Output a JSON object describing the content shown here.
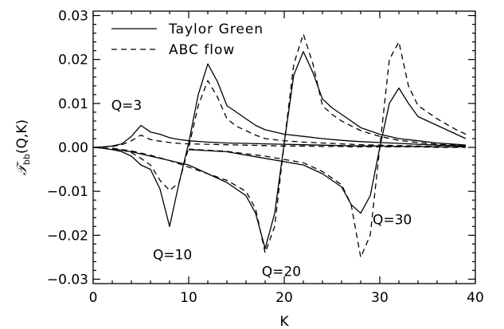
{
  "chart_data": {
    "type": "line",
    "xlabel": "K",
    "ylabel": "𝒯bb(Q,K)",
    "ylabel_main": "𝒯",
    "ylabel_sub": "bb",
    "ylabel_args": "(Q,K)",
    "xlim": [
      0,
      40
    ],
    "ylim": [
      -0.031,
      0.031
    ],
    "x_ticks": [
      0,
      10,
      20,
      30,
      40
    ],
    "x_tick_labels": [
      "0",
      "10",
      "20",
      "30",
      "40"
    ],
    "y_ticks": [
      -0.03,
      -0.02,
      -0.01,
      0.0,
      0.01,
      0.02,
      0.03
    ],
    "y_tick_labels": [
      "−0.03",
      "−0.02",
      "−0.01",
      "0.00",
      "0.01",
      "0.02",
      "0.03"
    ],
    "grid": false,
    "legend_position": "top-left",
    "legend": [
      {
        "label": "Taylor Green",
        "dash": "solid"
      },
      {
        "label": "ABC flow",
        "dash": "dashed"
      }
    ],
    "annotations": [
      {
        "text": "Q=3",
        "x": 3.5,
        "y": 0.0085
      },
      {
        "text": "Q=10",
        "x": 8.3,
        "y": -0.0255
      },
      {
        "text": "Q=20",
        "x": 19.7,
        "y": -0.0293
      },
      {
        "text": "Q=30",
        "x": 31.3,
        "y": -0.0175
      }
    ],
    "series": [
      {
        "name": "Taylor Green",
        "group": "Q=3",
        "dash": "solid",
        "x": [
          0,
          1,
          2,
          3,
          4,
          5,
          6,
          7,
          8,
          9,
          10,
          12,
          14,
          16,
          18,
          20,
          22,
          24,
          26,
          28,
          30,
          32,
          34,
          36,
          38,
          39
        ],
        "y": [
          0,
          0.0001,
          0.0003,
          0.0008,
          0.0025,
          0.005,
          0.0035,
          0.003,
          0.0022,
          0.0018,
          0.0015,
          0.0012,
          0.001,
          0.0009,
          0.0008,
          0.0007,
          0.0006,
          0.0005,
          0.0004,
          0.0003,
          0.0003,
          0.0002,
          0.0002,
          0.0001,
          0.0001,
          0.0001
        ]
      },
      {
        "name": "ABC flow",
        "group": "Q=3",
        "dash": "dashed",
        "x": [
          0,
          1,
          2,
          3,
          4,
          5,
          6,
          7,
          8,
          9,
          10,
          12,
          14,
          16,
          18,
          20,
          22,
          24,
          26,
          28,
          30,
          32,
          34,
          36,
          38,
          39
        ],
        "y": [
          0,
          0.0001,
          0.0002,
          0.0006,
          0.0015,
          0.0028,
          0.0018,
          0.0014,
          0.0011,
          0.0009,
          0.0008,
          0.0007,
          0.0006,
          0.0005,
          0.0004,
          0.0003,
          0.0003,
          0.0002,
          0.0002,
          0.0001,
          0.0001,
          0.0001,
          0.0001,
          0,
          0,
          0
        ]
      },
      {
        "name": "Taylor Green",
        "group": "Q=10",
        "dash": "solid",
        "x": [
          0,
          1,
          2,
          3,
          4,
          5,
          6,
          7,
          8,
          9,
          10,
          11,
          12,
          13,
          14,
          15,
          16,
          17,
          18,
          20,
          22,
          24,
          26,
          28,
          30,
          32,
          34,
          36,
          38,
          39
        ],
        "y": [
          0,
          -0.0002,
          -0.0005,
          -0.001,
          -0.002,
          -0.004,
          -0.005,
          -0.0095,
          -0.018,
          -0.008,
          0.001,
          0.012,
          0.019,
          0.015,
          0.0095,
          0.008,
          0.0065,
          0.005,
          0.004,
          0.003,
          0.0025,
          0.002,
          0.0016,
          0.0013,
          0.0011,
          0.0009,
          0.0007,
          0.0005,
          0.0004,
          0.0003
        ]
      },
      {
        "name": "ABC flow",
        "group": "Q=10",
        "dash": "dashed",
        "x": [
          0,
          1,
          2,
          3,
          4,
          5,
          6,
          7,
          8,
          9,
          10,
          11,
          12,
          13,
          14,
          15,
          16,
          17,
          18,
          20,
          22,
          24,
          26,
          28,
          30,
          32,
          34,
          36,
          38,
          39
        ],
        "y": [
          0,
          -0.0001,
          -0.0003,
          -0.0006,
          -0.0012,
          -0.0025,
          -0.004,
          -0.0075,
          -0.0098,
          -0.008,
          0.0,
          0.0095,
          0.0152,
          0.0115,
          0.0065,
          0.0048,
          0.0038,
          0.0028,
          0.002,
          0.0015,
          0.0012,
          0.001,
          0.0008,
          0.0006,
          0.0005,
          0.0004,
          0.0003,
          0.0002,
          0.0001,
          0.0001
        ]
      },
      {
        "name": "Taylor Green",
        "group": "Q=20",
        "dash": "solid",
        "x": [
          2,
          4,
          6,
          8,
          10,
          12,
          14,
          16,
          17,
          18,
          19,
          20,
          21,
          22,
          23,
          24,
          25,
          26,
          28,
          30,
          32,
          34,
          36,
          38,
          39
        ],
        "y": [
          -0.0003,
          -0.001,
          -0.002,
          -0.003,
          -0.004,
          -0.006,
          -0.008,
          -0.011,
          -0.015,
          -0.023,
          -0.015,
          0.001,
          0.0165,
          0.0218,
          0.017,
          0.011,
          0.009,
          0.0075,
          0.0045,
          0.003,
          0.002,
          0.0015,
          0.001,
          0.0007,
          0.0005
        ]
      },
      {
        "name": "ABC flow",
        "group": "Q=20",
        "dash": "dashed",
        "x": [
          2,
          4,
          6,
          8,
          10,
          12,
          14,
          16,
          17,
          18,
          19,
          20,
          21,
          22,
          23,
          24,
          25,
          26,
          28,
          30,
          32,
          34,
          36,
          38,
          39
        ],
        "y": [
          -0.0002,
          -0.0008,
          -0.0018,
          -0.003,
          -0.0045,
          -0.006,
          -0.0075,
          -0.01,
          -0.014,
          -0.024,
          -0.018,
          0.001,
          0.019,
          0.0258,
          0.019,
          0.0095,
          0.0075,
          0.006,
          0.0038,
          0.0025,
          0.0016,
          0.0011,
          0.0007,
          0.0005,
          0.0003
        ]
      },
      {
        "name": "Taylor Green",
        "group": "Q=30",
        "dash": "solid",
        "x": [
          10,
          14,
          18,
          22,
          24,
          26,
          27,
          28,
          29,
          30,
          31,
          32,
          33,
          34,
          36,
          38,
          39
        ],
        "y": [
          -0.0005,
          -0.001,
          -0.0025,
          -0.004,
          -0.006,
          -0.009,
          -0.013,
          -0.015,
          -0.011,
          0.0,
          0.01,
          0.0135,
          0.01,
          0.007,
          0.005,
          0.003,
          0.002
        ]
      },
      {
        "name": "ABC flow",
        "group": "Q=30",
        "dash": "dashed",
        "x": [
          10,
          14,
          18,
          22,
          24,
          26,
          27,
          28,
          29,
          30,
          31,
          32,
          33,
          34,
          36,
          38,
          39
        ],
        "y": [
          -0.0004,
          -0.0009,
          -0.002,
          -0.0035,
          -0.0055,
          -0.0085,
          -0.013,
          -0.025,
          -0.02,
          0.0,
          0.02,
          0.024,
          0.014,
          0.0095,
          0.0065,
          0.004,
          0.003
        ]
      }
    ]
  }
}
